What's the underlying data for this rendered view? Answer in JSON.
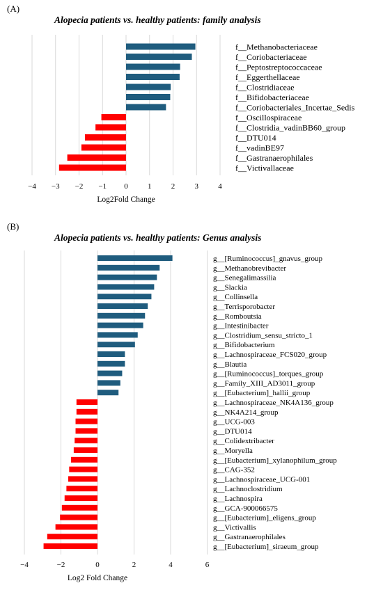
{
  "chart_data": [
    {
      "panel": "(A)",
      "type": "bar",
      "orientation": "horizontal",
      "title": "Alopecia patients vs. healthy patients: family analysis",
      "xlabel": "Log2Fold Change",
      "ylabel": "",
      "xlim": [
        -4,
        4
      ],
      "xticks": [
        -4,
        -3,
        -2,
        -1,
        0,
        1,
        2,
        3,
        4
      ],
      "grid": true,
      "colors": {
        "positive": "#1f5c7e",
        "negative": "#ff0000"
      },
      "categories": [
        "f__Methanobacteriaceae",
        "f__Coriobacteriaceae",
        "f__Peptostreptococcaceae",
        "f__Eggerthellaceae",
        "f__Clostridiaceae",
        "f__Bifidobacteriaceae",
        "f__Coriobacteriales_Incertae_Sedis",
        "f__Oscillospiraceae",
        "f__Clostridia_vadinBB60_group",
        "f__DTU014",
        "f__vadinBE97",
        "f__Gastranaerophilales",
        "f__Victivallaceae"
      ],
      "values": [
        2.95,
        2.8,
        2.3,
        2.28,
        1.9,
        1.88,
        1.7,
        -1.05,
        -1.3,
        -1.75,
        -1.9,
        -2.5,
        -2.85
      ]
    },
    {
      "panel": "(B)",
      "type": "bar",
      "orientation": "horizontal",
      "title": "Alopecia patients vs. healthy patients: Genus analysis",
      "xlabel": "Log2 Fold Change",
      "ylabel": "",
      "xlim": [
        -4,
        6
      ],
      "xticks": [
        -4,
        -2,
        0,
        2,
        4,
        6
      ],
      "grid": true,
      "colors": {
        "positive": "#1f5c7e",
        "negative": "#ff0000"
      },
      "categories": [
        "g__[Ruminococcus]_gnavus_group",
        "g__Methanobrevibacter",
        "g__Senegalimassilia",
        "g__Slackia",
        "g__Collinsella",
        "g__Terrisporobacter",
        "g__Romboutsia",
        "g__Intestinibacter",
        "g__Clostridium_sensu_stricto_1",
        "g__Bifidobacterium",
        "g__Lachnospiraceae_FCS020_group",
        "g__Blautia",
        "g__[Ruminococcus]_torques_group",
        "g__Family_XIII_AD3011_group",
        "g__[Eubacterium]_hallii_group",
        "g__Lachnospiraceae_NK4A136_group",
        "g__NK4A214_group",
        "g__UCG-003",
        "g__DTU014",
        "g__Colidextribacter",
        "g__Moryella",
        "g__[Eubacterium]_xylanophilum_group",
        "g__CAG-352",
        "g__Lachnospiraceae_UCG-001",
        "g__Lachnoclostridium",
        "g__Lachnospira",
        "g__GCA-900066575",
        "g__[Eubacterium]_eligens_group",
        "g__Victivallis",
        "g__Gastranaerophilales",
        "g__[Eubacterium]_siraeum_group"
      ],
      "values": [
        4.1,
        3.4,
        3.25,
        3.1,
        2.95,
        2.75,
        2.6,
        2.5,
        2.2,
        2.05,
        1.5,
        1.5,
        1.35,
        1.25,
        1.15,
        -1.15,
        -1.15,
        -1.2,
        -1.2,
        -1.25,
        -1.3,
        -1.45,
        -1.55,
        -1.6,
        -1.7,
        -1.8,
        -1.95,
        -2.05,
        -2.3,
        -2.75,
        -2.95
      ]
    }
  ]
}
